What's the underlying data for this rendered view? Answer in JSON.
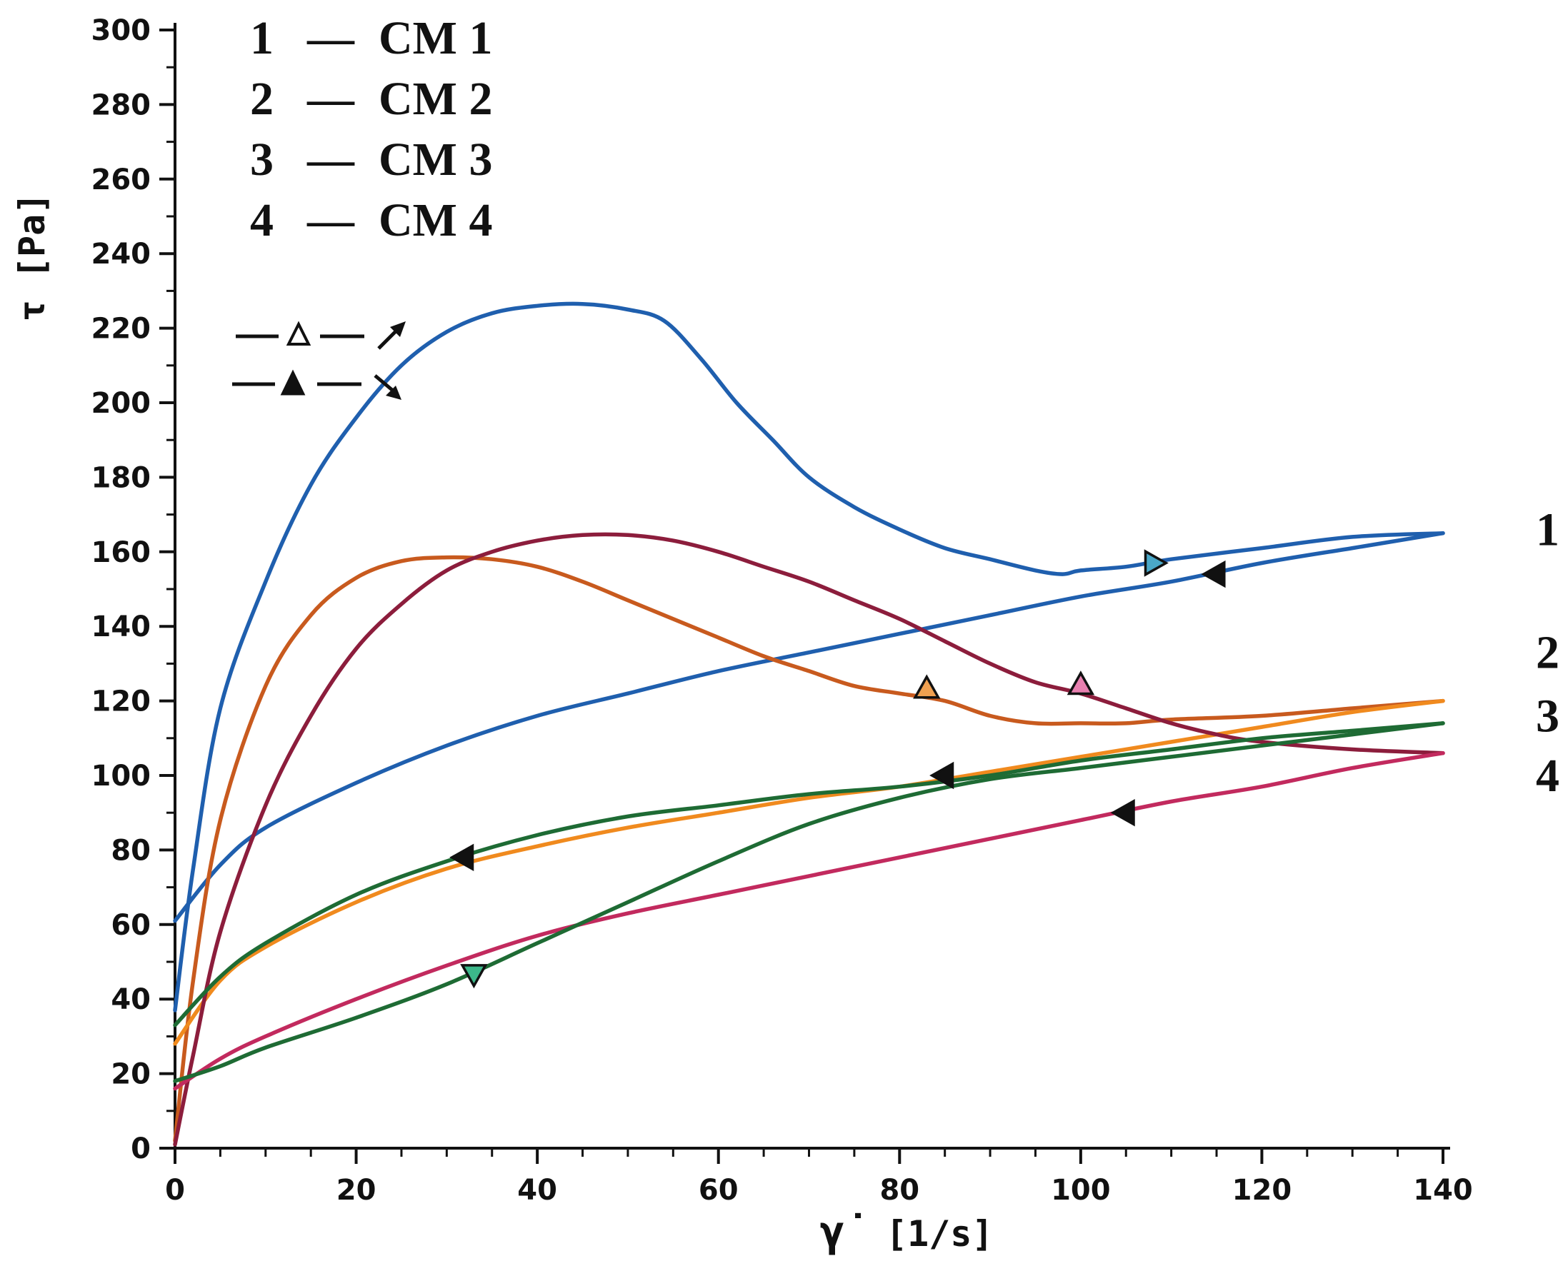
{
  "chart_data": {
    "type": "line",
    "title": "",
    "xlabel": "[1/s]",
    "xlabel_symbol": "γ̇",
    "ylabel": "τ [Pa]",
    "xlim": [
      0,
      140
    ],
    "ylim": [
      0,
      300
    ],
    "x_ticks": [
      0,
      20,
      40,
      60,
      80,
      100,
      120,
      140
    ],
    "y_ticks": [
      0,
      20,
      40,
      60,
      80,
      100,
      120,
      140,
      160,
      180,
      200,
      220,
      240,
      260,
      280,
      300
    ],
    "legend": [
      {
        "number": "1",
        "dash": "—",
        "name": "CM 1"
      },
      {
        "number": "2",
        "dash": "—",
        "name": "CM 2"
      },
      {
        "number": "3",
        "dash": "—",
        "name": "CM 3"
      },
      {
        "number": "4",
        "dash": "—",
        "name": "CM 4"
      }
    ],
    "direction_key": [
      {
        "marker": "open-triangle",
        "direction": "increasing shear rate"
      },
      {
        "marker": "filled-triangle",
        "direction": "decreasing shear rate"
      }
    ],
    "end_labels": [
      {
        "text": "1",
        "y": 166
      },
      {
        "text": "2",
        "y": 133
      },
      {
        "text": "3",
        "y": 116
      },
      {
        "text": "4",
        "y": 100
      }
    ],
    "series": [
      {
        "name": "CM 1 up",
        "color": "#1f5fae",
        "branch": "up",
        "x": [
          0,
          2,
          5,
          10,
          15,
          20,
          25,
          30,
          35,
          40,
          45,
          50,
          54,
          58,
          62,
          66,
          70,
          75,
          80,
          85,
          90,
          95,
          98,
          100,
          105,
          110,
          120,
          130,
          140
        ],
        "y": [
          37,
          75,
          118,
          152,
          178,
          196,
          210,
          219,
          224,
          226,
          226.5,
          225,
          222,
          212,
          200,
          190,
          180,
          172,
          166,
          161,
          158,
          155,
          154,
          155,
          156,
          158,
          161,
          164,
          165
        ]
      },
      {
        "name": "CM 1 down",
        "color": "#1f5fae",
        "branch": "down",
        "x": [
          0,
          5,
          10,
          20,
          30,
          40,
          50,
          60,
          70,
          80,
          90,
          100,
          110,
          120,
          130,
          140
        ],
        "y": [
          61,
          76,
          86,
          98,
          108,
          116,
          122,
          128,
          133,
          138,
          143,
          148,
          152,
          157,
          161,
          165
        ]
      },
      {
        "name": "CM 2 up",
        "color": "#c85a1e",
        "branch": "up",
        "x": [
          0,
          2,
          5,
          10,
          15,
          20,
          25,
          30,
          35,
          40,
          45,
          50,
          55,
          60,
          65,
          70,
          75,
          80,
          85,
          90,
          95,
          100,
          105,
          110,
          120,
          130,
          140
        ],
        "y": [
          2,
          45,
          88,
          124,
          143,
          153,
          157.5,
          158.5,
          158,
          156,
          152,
          147,
          142,
          137,
          132,
          128,
          124,
          122,
          120,
          116,
          114,
          114,
          114,
          115,
          116,
          118,
          120
        ]
      },
      {
        "name": "CM 2 down",
        "color": "#f08a1e",
        "branch": "down",
        "x": [
          0,
          5,
          10,
          20,
          30,
          40,
          50,
          60,
          70,
          80,
          90,
          100,
          110,
          120,
          130,
          140
        ],
        "y": [
          28,
          45,
          54,
          66,
          75,
          81,
          86,
          90,
          94,
          97,
          101,
          105,
          109,
          113,
          117,
          120
        ]
      },
      {
        "name": "CM 3 up",
        "color": "#8c1d3c",
        "branch": "up",
        "x": [
          0,
          2,
          5,
          10,
          15,
          20,
          25,
          30,
          35,
          40,
          45,
          50,
          55,
          60,
          65,
          70,
          75,
          80,
          85,
          90,
          95,
          100,
          105,
          110,
          115,
          120,
          130,
          140
        ],
        "y": [
          1,
          25,
          58,
          92,
          116,
          134,
          146,
          155,
          160,
          163,
          164.5,
          164.5,
          163,
          160,
          156,
          152,
          147,
          142,
          136,
          130,
          125,
          122,
          118,
          114,
          111,
          109,
          107,
          106
        ]
      },
      {
        "name": "CM 3 down",
        "color": "#c22a5e",
        "branch": "down",
        "x": [
          0,
          5,
          10,
          20,
          30,
          40,
          50,
          60,
          70,
          80,
          90,
          100,
          110,
          120,
          130,
          140
        ],
        "y": [
          16,
          24,
          30,
          40,
          49,
          57,
          63,
          68,
          73,
          78,
          83,
          88,
          93,
          97,
          102,
          106
        ]
      },
      {
        "name": "CM 4 up",
        "color": "#1e6b34",
        "branch": "up",
        "x": [
          0,
          5,
          10,
          20,
          30,
          40,
          50,
          60,
          70,
          80,
          90,
          100,
          110,
          120,
          130,
          140
        ],
        "y": [
          18,
          22,
          27,
          35,
          44,
          55,
          66,
          77,
          87,
          94,
          99,
          102,
          105,
          108,
          111,
          114
        ]
      },
      {
        "name": "CM 4 down",
        "color": "#1e6b34",
        "branch": "down",
        "x": [
          0,
          5,
          10,
          20,
          30,
          40,
          50,
          60,
          70,
          80,
          90,
          100,
          110,
          120,
          130,
          140
        ],
        "y": [
          33,
          46,
          55,
          68,
          77,
          84,
          89,
          92,
          95,
          97,
          100,
          104,
          107,
          110,
          112,
          114
        ]
      }
    ],
    "markers": [
      {
        "series": "CM 1 up",
        "x": 108,
        "y": 157,
        "shape": "open",
        "dir": "right",
        "fill": "#4aa8c8"
      },
      {
        "series": "CM 1 down",
        "x": 115,
        "y": 154,
        "shape": "filled",
        "dir": "left"
      },
      {
        "series": "CM 2 up",
        "x": 83,
        "y": 123,
        "shape": "open",
        "dir": "up",
        "fill": "#f0a050"
      },
      {
        "series": "CM 2 down",
        "x": 85,
        "y": 100,
        "shape": "filled",
        "dir": "left"
      },
      {
        "series": "CM 3 up",
        "x": 100,
        "y": 124,
        "shape": "open",
        "dir": "up",
        "fill": "#e880b0"
      },
      {
        "series": "CM 3 down",
        "x": 105,
        "y": 90,
        "shape": "filled",
        "dir": "left"
      },
      {
        "series": "CM 4 up",
        "x": 33,
        "y": 47,
        "shape": "open",
        "dir": "down",
        "fill": "#3cb88a"
      },
      {
        "series": "CM 4 down",
        "x": 32,
        "y": 78,
        "shape": "filled",
        "dir": "left"
      }
    ]
  }
}
